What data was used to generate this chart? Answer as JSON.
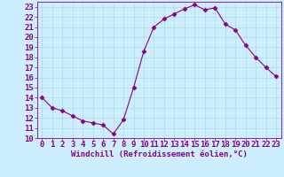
{
  "x": [
    0,
    1,
    2,
    3,
    4,
    5,
    6,
    7,
    8,
    9,
    10,
    11,
    12,
    13,
    14,
    15,
    16,
    17,
    18,
    19,
    20,
    21,
    22,
    23
  ],
  "y": [
    14,
    13,
    12.7,
    12.2,
    11.7,
    11.5,
    11.3,
    10.4,
    11.8,
    15.0,
    18.6,
    21.0,
    21.8,
    22.3,
    22.8,
    23.2,
    22.7,
    22.9,
    21.3,
    20.7,
    19.2,
    18.0,
    17.0,
    16.1
  ],
  "line_color": "#880088",
  "marker": "D",
  "marker_size": 2.5,
  "bg_color": "#cceeff",
  "grid_color": "#aadddd",
  "xlabel": "Windchill (Refroidissement éolien,°C)",
  "xlabel_color": "#880088",
  "tick_color": "#880088",
  "ylim": [
    10,
    23.5
  ],
  "xlim": [
    -0.5,
    23.5
  ],
  "yticks": [
    10,
    11,
    12,
    13,
    14,
    15,
    16,
    17,
    18,
    19,
    20,
    21,
    22,
    23
  ],
  "xticks": [
    0,
    1,
    2,
    3,
    4,
    5,
    6,
    7,
    8,
    9,
    10,
    11,
    12,
    13,
    14,
    15,
    16,
    17,
    18,
    19,
    20,
    21,
    22,
    23
  ],
  "spine_color": "#880088",
  "font_size": 6.5,
  "label_font_size": 6.5
}
